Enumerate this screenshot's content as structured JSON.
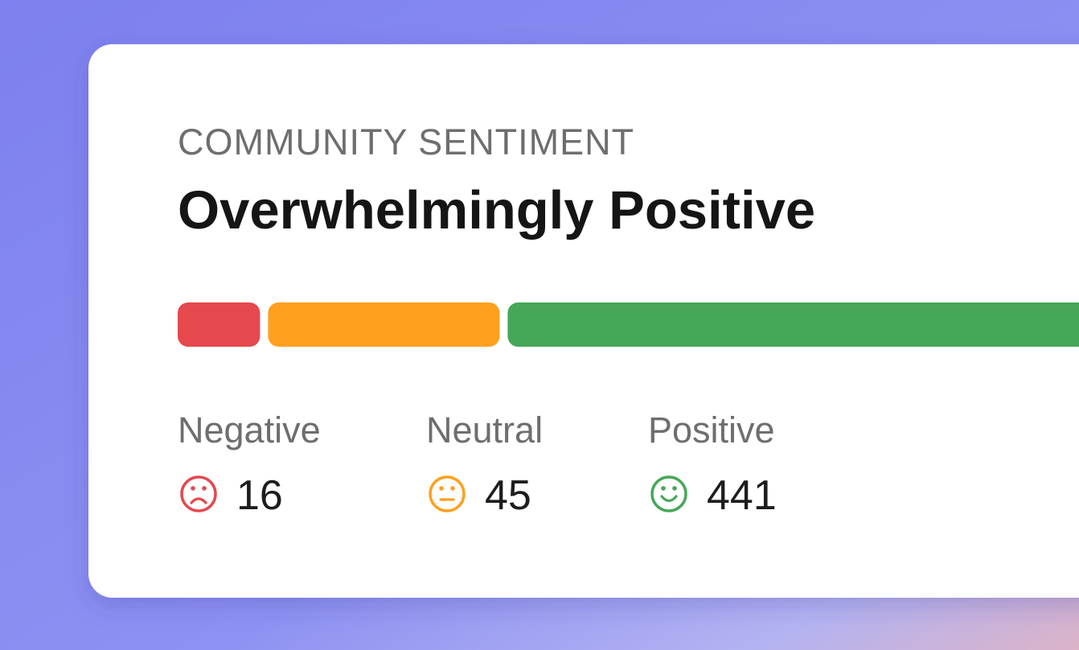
{
  "chart_data": {
    "type": "stacked-bar",
    "title": "COMMUNITY SENTIMENT",
    "subtitle": "Overwhelmingly Positive",
    "categories": [
      "Negative",
      "Neutral",
      "Positive"
    ],
    "values": [
      16,
      45,
      441
    ],
    "colors": [
      "#e5484d",
      "#ffa01f",
      "#46a758"
    ]
  }
}
